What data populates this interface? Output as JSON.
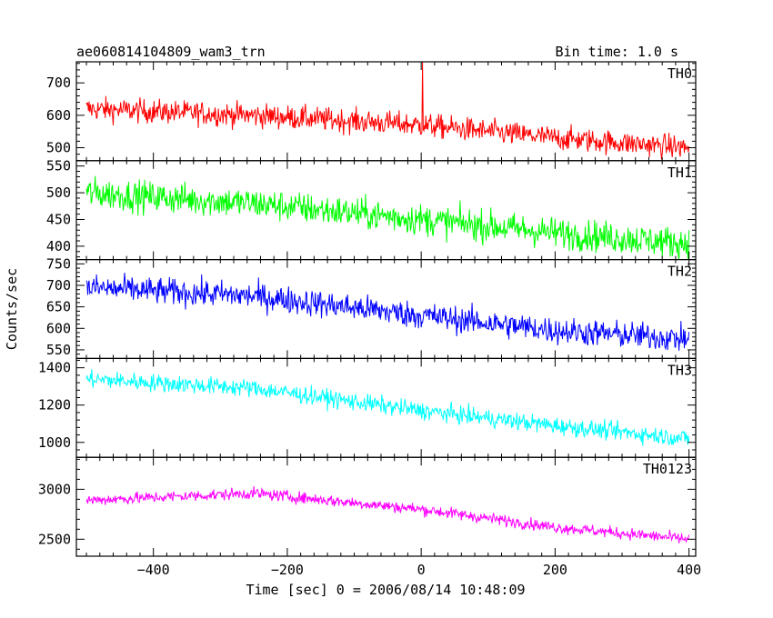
{
  "header": {
    "object_name": "ae060814104809_wam3_trn",
    "bin_time": "Bin time: 1.0 s"
  },
  "axes": {
    "xlabel": "Time [sec] 0 = 2006/08/14 10:48:09",
    "ylabel": "Counts/sec"
  },
  "chart_data": [
    {
      "type": "line",
      "series_name": "TH0",
      "color": "#ff0000",
      "xlim": [
        -515,
        410
      ],
      "ylim": [
        460,
        765
      ],
      "xticks": [
        -400,
        -200,
        0,
        200,
        400
      ],
      "yticks": [
        500,
        600,
        700
      ],
      "trend": {
        "x": [
          -500,
          -250,
          0,
          200,
          400
        ],
        "y": [
          620,
          600,
          570,
          530,
          500
        ]
      },
      "noise": 35,
      "spikes": [
        {
          "x": 2,
          "y": 765
        }
      ]
    },
    {
      "type": "line",
      "series_name": "TH1",
      "color": "#00ff00",
      "xlim": [
        -515,
        410
      ],
      "ylim": [
        375,
        560
      ],
      "xticks": [
        -400,
        -200,
        0,
        200,
        400
      ],
      "yticks": [
        400,
        450,
        500,
        550
      ],
      "trend": {
        "x": [
          -500,
          -250,
          0,
          200,
          400
        ],
        "y": [
          500,
          480,
          450,
          425,
          405
        ]
      },
      "noise": 28
    },
    {
      "type": "line",
      "series_name": "TH2",
      "color": "#0000ff",
      "xlim": [
        -515,
        410
      ],
      "ylim": [
        530,
        760
      ],
      "xticks": [
        -400,
        -200,
        0,
        200,
        400
      ],
      "yticks": [
        550,
        600,
        650,
        700,
        750
      ],
      "trend": {
        "x": [
          -500,
          -250,
          0,
          200,
          400
        ],
        "y": [
          695,
          675,
          630,
          595,
          575
        ]
      },
      "noise": 30
    },
    {
      "type": "line",
      "series_name": "TH3",
      "color": "#00ffff",
      "xlim": [
        -515,
        410
      ],
      "ylim": [
        920,
        1450
      ],
      "xticks": [
        -400,
        -200,
        0,
        200,
        400
      ],
      "yticks": [
        1000,
        1200,
        1400
      ],
      "trend": {
        "x": [
          -500,
          -250,
          0,
          200,
          400
        ],
        "y": [
          1340,
          1290,
          1170,
          1090,
          1020
        ]
      },
      "noise": 45
    },
    {
      "type": "line",
      "series_name": "TH0123",
      "color": "#ff00ff",
      "xlim": [
        -515,
        410
      ],
      "ylim": [
        2330,
        3320
      ],
      "xticks": [
        -400,
        -200,
        0,
        200,
        400
      ],
      "yticks": [
        2500,
        3000
      ],
      "trend": {
        "x": [
          -500,
          -250,
          0,
          200,
          400
        ],
        "y": [
          2890,
          2960,
          2800,
          2620,
          2500
        ]
      },
      "noise": 55
    }
  ]
}
